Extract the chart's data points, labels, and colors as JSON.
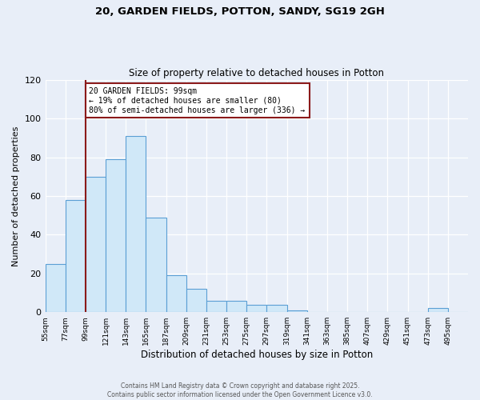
{
  "title_line1": "20, GARDEN FIELDS, POTTON, SANDY, SG19 2GH",
  "title_line2": "Size of property relative to detached houses in Potton",
  "xlabel": "Distribution of detached houses by size in Potton",
  "ylabel": "Number of detached properties",
  "bar_edges": [
    55,
    77,
    99,
    121,
    143,
    165,
    187,
    209,
    231,
    253,
    275,
    297,
    319,
    341,
    363,
    385,
    407,
    429,
    451,
    473,
    495,
    517
  ],
  "bar_heights": [
    25,
    58,
    70,
    79,
    91,
    49,
    19,
    12,
    6,
    6,
    4,
    4,
    1,
    0,
    0,
    0,
    0,
    0,
    0,
    2,
    0
  ],
  "bar_color": "#d0e8f8",
  "bar_edge_color": "#5a9fd4",
  "reference_line_x": 99,
  "reference_line_color": "#8b1a1a",
  "annotation_text": "20 GARDEN FIELDS: 99sqm\n← 19% of detached houses are smaller (80)\n80% of semi-detached houses are larger (336) →",
  "annotation_box_color": "#ffffff",
  "annotation_box_edge_color": "#8b1a1a",
  "ylim": [
    0,
    120
  ],
  "yticks": [
    0,
    20,
    40,
    60,
    80,
    100,
    120
  ],
  "xlim": [
    55,
    517
  ],
  "background_color": "#e8eef8",
  "grid_color": "#ffffff",
  "footer_line1": "Contains HM Land Registry data © Crown copyright and database right 2025.",
  "footer_line2": "Contains public sector information licensed under the Open Government Licence v3.0."
}
